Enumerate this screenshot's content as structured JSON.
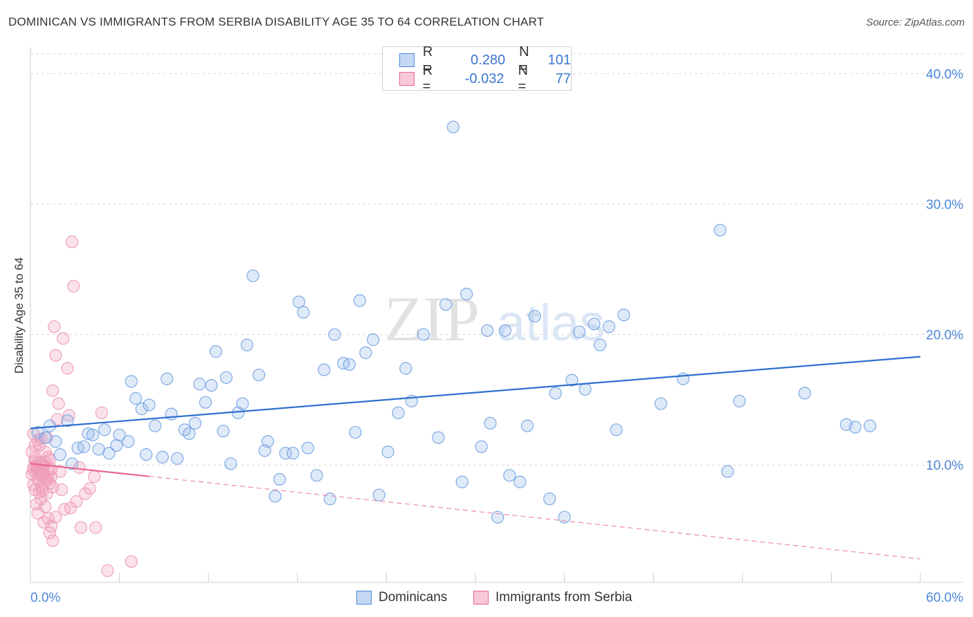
{
  "title": "DOMINICAN VS IMMIGRANTS FROM SERBIA DISABILITY AGE 35 TO 64 CORRELATION CHART",
  "source": "Source: ZipAtlas.com",
  "watermark": {
    "zip": "ZIP",
    "atlas": "atlas"
  },
  "legend": {
    "r_label": "R =",
    "n_label": "N =",
    "rows": [
      {
        "r": "0.280",
        "n": "101",
        "color": "#4a86d8"
      },
      {
        "r": "-0.032",
        "n": "77",
        "color": "#e8648c"
      }
    ]
  },
  "bottom_legend": [
    {
      "label": "Dominicans",
      "color": "#4a86d8"
    },
    {
      "label": "Immigrants from Serbia",
      "color": "#e8648c"
    }
  ],
  "chart_data": {
    "type": "scatter",
    "title": "DOMINICAN VS IMMIGRANTS FROM SERBIA DISABILITY AGE 35 TO 64 CORRELATION CHART",
    "xlabel": "",
    "ylabel": "Disability Age 35 to 64",
    "xlim": [
      0,
      60
    ],
    "ylim": [
      1,
      41.5
    ],
    "x_tick_labels": [
      "0.0%",
      "60.0%"
    ],
    "y_ticks": [
      10,
      20,
      30,
      40
    ],
    "y_tick_labels": [
      "10.0%",
      "20.0%",
      "30.0%",
      "40.0%"
    ],
    "grid": true,
    "series": [
      {
        "name": "Dominicans",
        "color": "#4a86d8",
        "trend": {
          "x": [
            0,
            60
          ],
          "y": [
            12.8,
            18.3
          ],
          "dashed_to": null
        },
        "points": [
          [
            0.5,
            12.5
          ],
          [
            1.0,
            12.1
          ],
          [
            1.3,
            13.0
          ],
          [
            1.7,
            11.8
          ],
          [
            2.0,
            10.8
          ],
          [
            2.5,
            13.4
          ],
          [
            2.8,
            10.1
          ],
          [
            3.2,
            11.3
          ],
          [
            3.6,
            11.4
          ],
          [
            3.9,
            12.4
          ],
          [
            4.2,
            12.3
          ],
          [
            4.6,
            11.2
          ],
          [
            5.0,
            12.7
          ],
          [
            5.3,
            10.9
          ],
          [
            5.8,
            11.5
          ],
          [
            6.0,
            12.3
          ],
          [
            6.6,
            11.8
          ],
          [
            6.8,
            16.4
          ],
          [
            7.1,
            15.1
          ],
          [
            7.5,
            14.3
          ],
          [
            7.8,
            10.8
          ],
          [
            8.0,
            14.6
          ],
          [
            8.4,
            13.0
          ],
          [
            8.9,
            10.6
          ],
          [
            9.2,
            16.6
          ],
          [
            9.5,
            13.9
          ],
          [
            9.9,
            10.5
          ],
          [
            10.4,
            12.7
          ],
          [
            10.7,
            12.4
          ],
          [
            11.1,
            13.2
          ],
          [
            11.4,
            16.2
          ],
          [
            11.8,
            14.8
          ],
          [
            12.2,
            16.1
          ],
          [
            12.5,
            18.7
          ],
          [
            13.0,
            12.6
          ],
          [
            13.2,
            16.7
          ],
          [
            13.5,
            10.1
          ],
          [
            14.0,
            14.0
          ],
          [
            14.3,
            14.7
          ],
          [
            14.6,
            19.2
          ],
          [
            15.0,
            24.5
          ],
          [
            15.4,
            16.9
          ],
          [
            15.8,
            11.1
          ],
          [
            16.0,
            11.8
          ],
          [
            16.5,
            7.6
          ],
          [
            16.8,
            8.9
          ],
          [
            17.2,
            10.9
          ],
          [
            17.7,
            10.9
          ],
          [
            18.1,
            22.5
          ],
          [
            18.4,
            21.7
          ],
          [
            18.7,
            11.3
          ],
          [
            19.3,
            9.2
          ],
          [
            19.8,
            17.3
          ],
          [
            20.2,
            7.4
          ],
          [
            20.5,
            20.0
          ],
          [
            21.1,
            17.8
          ],
          [
            21.5,
            17.7
          ],
          [
            21.9,
            12.5
          ],
          [
            22.2,
            22.6
          ],
          [
            22.6,
            18.6
          ],
          [
            23.1,
            19.6
          ],
          [
            23.5,
            7.7
          ],
          [
            24.1,
            11.0
          ],
          [
            24.8,
            14.0
          ],
          [
            25.3,
            17.4
          ],
          [
            25.7,
            14.9
          ],
          [
            26.5,
            20.0
          ],
          [
            27.5,
            12.1
          ],
          [
            28.0,
            22.3
          ],
          [
            28.5,
            35.9
          ],
          [
            29.1,
            8.7
          ],
          [
            29.4,
            23.1
          ],
          [
            30.4,
            11.4
          ],
          [
            30.8,
            20.3
          ],
          [
            31.0,
            13.2
          ],
          [
            31.5,
            6.0
          ],
          [
            32.0,
            20.3
          ],
          [
            32.3,
            9.2
          ],
          [
            33.0,
            8.7
          ],
          [
            33.5,
            13.0
          ],
          [
            34.0,
            21.4
          ],
          [
            35.0,
            7.4
          ],
          [
            35.4,
            15.5
          ],
          [
            36.0,
            6.0
          ],
          [
            36.5,
            16.5
          ],
          [
            37.0,
            20.2
          ],
          [
            37.4,
            15.8
          ],
          [
            38.0,
            20.8
          ],
          [
            38.4,
            19.2
          ],
          [
            39.0,
            20.6
          ],
          [
            39.5,
            12.7
          ],
          [
            40.0,
            21.5
          ],
          [
            42.5,
            14.7
          ],
          [
            44.0,
            16.6
          ],
          [
            46.5,
            28.0
          ],
          [
            47.0,
            9.5
          ],
          [
            47.8,
            14.9
          ],
          [
            52.2,
            15.5
          ],
          [
            55.0,
            13.1
          ],
          [
            55.6,
            12.9
          ],
          [
            56.6,
            13.0
          ]
        ]
      },
      {
        "name": "Immigrants from Serbia",
        "color": "#e8648c",
        "trend": {
          "x": [
            0,
            60
          ],
          "y": [
            10.1,
            2.8
          ],
          "solid_to": 8
        },
        "points": [
          [
            0.1,
            11.0
          ],
          [
            0.2,
            9.6
          ],
          [
            0.2,
            12.4
          ],
          [
            0.3,
            8.1
          ],
          [
            0.3,
            10.5
          ],
          [
            0.4,
            7.0
          ],
          [
            0.4,
            9.9
          ],
          [
            0.5,
            6.3
          ],
          [
            0.5,
            8.9
          ],
          [
            0.6,
            10.2
          ],
          [
            0.6,
            11.5
          ],
          [
            0.7,
            7.4
          ],
          [
            0.7,
            9.3
          ],
          [
            0.8,
            9.5
          ],
          [
            0.8,
            8.3
          ],
          [
            0.9,
            5.6
          ],
          [
            0.9,
            10.0
          ],
          [
            1.0,
            6.8
          ],
          [
            1.0,
            9.0
          ],
          [
            1.1,
            12.1
          ],
          [
            1.1,
            7.8
          ],
          [
            1.2,
            9.6
          ],
          [
            1.2,
            10.6
          ],
          [
            1.3,
            4.8
          ],
          [
            1.3,
            8.6
          ],
          [
            1.4,
            5.3
          ],
          [
            1.4,
            9.7
          ],
          [
            1.5,
            15.7
          ],
          [
            1.6,
            20.6
          ],
          [
            1.7,
            18.4
          ],
          [
            1.7,
            6.0
          ],
          [
            1.8,
            13.5
          ],
          [
            1.9,
            14.7
          ],
          [
            2.0,
            9.5
          ],
          [
            2.1,
            8.1
          ],
          [
            2.2,
            19.7
          ],
          [
            2.3,
            6.6
          ],
          [
            2.5,
            17.4
          ],
          [
            2.6,
            13.8
          ],
          [
            2.8,
            27.1
          ],
          [
            2.9,
            23.7
          ],
          [
            3.1,
            7.2
          ],
          [
            3.4,
            5.2
          ],
          [
            3.7,
            7.8
          ],
          [
            4.0,
            8.2
          ],
          [
            4.3,
            9.1
          ],
          [
            4.4,
            5.2
          ],
          [
            4.8,
            14.0
          ],
          [
            5.2,
            1.9
          ],
          [
            6.8,
            2.6
          ],
          [
            0.2,
            9.8
          ],
          [
            0.3,
            10.3
          ],
          [
            0.4,
            10.0
          ],
          [
            0.5,
            9.4
          ],
          [
            0.6,
            8.7
          ],
          [
            0.7,
            10.1
          ],
          [
            0.8,
            9.2
          ],
          [
            0.9,
            9.9
          ],
          [
            1.0,
            10.2
          ],
          [
            1.1,
            8.8
          ],
          [
            1.2,
            9.0
          ],
          [
            1.3,
            10.4
          ],
          [
            1.4,
            9.1
          ],
          [
            1.5,
            8.3
          ],
          [
            0.1,
            9.3
          ],
          [
            0.2,
            8.5
          ],
          [
            0.3,
            11.5
          ],
          [
            0.5,
            11.9
          ],
          [
            0.6,
            7.9
          ],
          [
            0.7,
            12.0
          ],
          [
            0.8,
            8.0
          ],
          [
            1.0,
            11.0
          ],
          [
            1.2,
            5.9
          ],
          [
            1.5,
            4.2
          ],
          [
            2.7,
            6.7
          ],
          [
            3.3,
            9.8
          ],
          [
            0.4,
            9.7
          ]
        ]
      }
    ]
  }
}
